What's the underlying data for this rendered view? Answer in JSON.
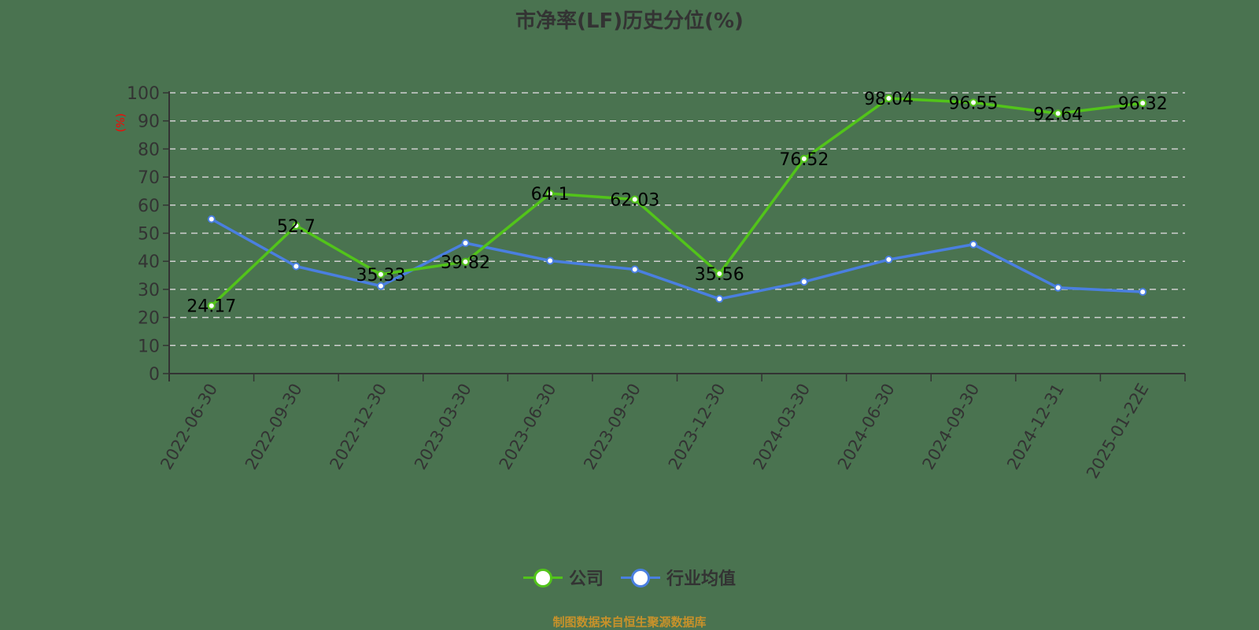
{
  "title": "市净率(LF)历史分位(%)",
  "y_axis_unit_label": "(%)",
  "legend": {
    "company_label": "公司",
    "industry_label": "行业均值"
  },
  "source_note": "制图数据来自恒生聚源数据库",
  "colors": {
    "background": "#4a7350",
    "company": "#52c41a",
    "industry": "#4a7fe0",
    "grid": "#d0d0d0",
    "axis": "#333333",
    "unit_label": "#ff0000",
    "source": "#c8922a"
  },
  "chart_data": {
    "type": "line",
    "title": "市净率(LF)历史分位(%)",
    "xlabel": "",
    "ylabel": "(%)",
    "ylim": [
      0,
      100
    ],
    "yticks": [
      0,
      10,
      20,
      30,
      40,
      50,
      60,
      70,
      80,
      90,
      100
    ],
    "grid": true,
    "grid_style": "dashed horizontal",
    "legend_position": "bottom",
    "categories": [
      "2022-06-30",
      "2022-09-30",
      "2022-12-30",
      "2023-03-30",
      "2023-06-30",
      "2023-09-30",
      "2023-12-30",
      "2024-03-30",
      "2024-06-30",
      "2024-09-30",
      "2024-12-31",
      "2025-01-22E"
    ],
    "series": [
      {
        "name": "公司",
        "color": "#52c41a",
        "values": [
          24.17,
          52.7,
          35.33,
          39.82,
          64.1,
          62.03,
          35.56,
          76.52,
          98.04,
          96.55,
          92.64,
          96.32
        ],
        "data_labels": [
          "24.17",
          "52.7",
          "35.33",
          "39.82",
          "64.1",
          "62.03",
          "35.56",
          "76.52",
          "98.04",
          "96.55",
          "92.64",
          "96.32"
        ]
      },
      {
        "name": "行业均值",
        "color": "#4a7fe0",
        "values": [
          55.0,
          38.2,
          31.2,
          46.5,
          40.2,
          37.1,
          26.6,
          32.7,
          40.6,
          46.0,
          30.6,
          29.1
        ]
      }
    ]
  }
}
